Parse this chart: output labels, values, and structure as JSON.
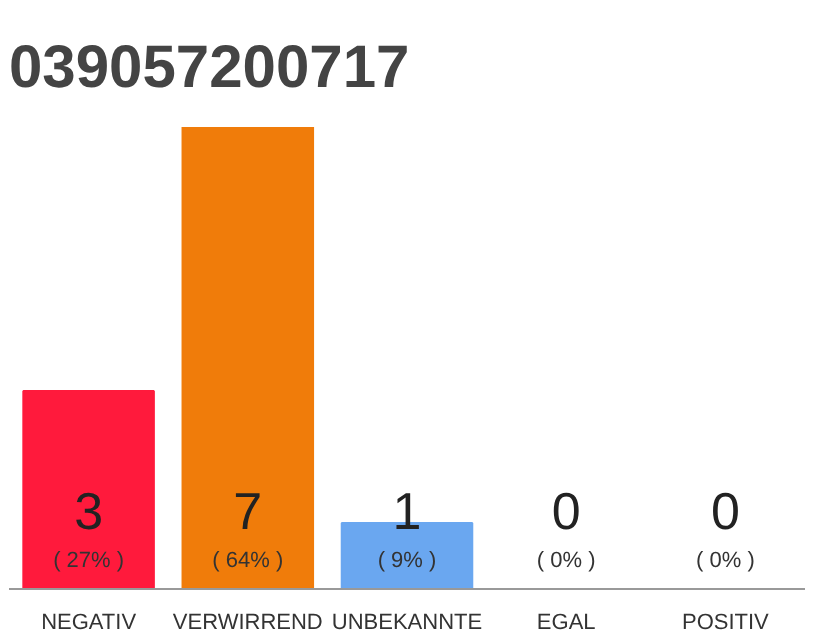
{
  "chart_data": {
    "type": "bar",
    "title": "039057200717",
    "categories": [
      "NEGATIV",
      "VERWIRREND",
      "UNBEKANNTE",
      "EGAL",
      "POSITIV"
    ],
    "values": [
      3,
      7,
      1,
      0,
      0
    ],
    "colors": [
      "#ff1a3c",
      "#f07c0a",
      "#6aa7f0",
      "#9e9e9e",
      "#9e9e9e"
    ],
    "value_labels": [
      "3",
      "7",
      "1",
      "0",
      "0"
    ],
    "annotations": [
      {
        "text": "( 27% )",
        "x": "NEGATIV",
        "y": 0
      },
      {
        "text": "( 64% )",
        "x": "VERWIRREND",
        "y": 0
      },
      {
        "text": "( 9% )",
        "x": "UNBEKANNTE",
        "y": 0
      },
      {
        "text": "( 0% )",
        "x": "EGAL",
        "y": 0
      },
      {
        "text": "( 0% )",
        "x": "POSITIV",
        "y": 0
      }
    ],
    "tick_labels": "x",
    "grid": false
  }
}
